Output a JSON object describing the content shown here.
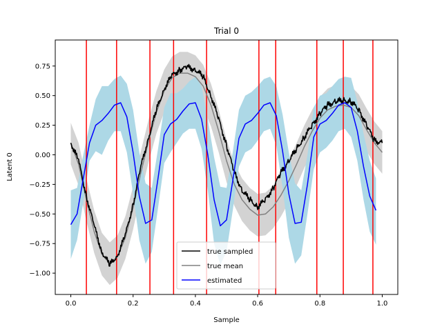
{
  "chart_data": {
    "type": "line",
    "title": "Trial 0",
    "xlabel": "Sample",
    "ylabel": "Latent 0",
    "xlim": [
      -0.05,
      1.05
    ],
    "ylim": [
      -1.18,
      0.97
    ],
    "xticks": [
      0.0,
      0.2,
      0.4,
      0.6,
      0.8,
      1.0
    ],
    "xtick_labels": [
      "0.0",
      "0.2",
      "0.4",
      "0.6",
      "0.8",
      "1.0"
    ],
    "yticks": [
      -1.0,
      -0.75,
      -0.5,
      -0.25,
      0.0,
      0.25,
      0.5,
      0.75
    ],
    "ytick_labels": [
      "−1.00",
      "−0.75",
      "−0.50",
      "−0.25",
      "0.00",
      "0.25",
      "0.50",
      "0.75"
    ],
    "grid": false,
    "legend_position": "bottom-center",
    "vertical_lines": {
      "color": "#ff0000",
      "x": [
        0.05,
        0.147,
        0.254,
        0.33,
        0.436,
        0.604,
        0.658,
        0.79,
        0.875,
        0.97
      ]
    },
    "series": [
      {
        "name": "true sampled",
        "color": "#000000",
        "x": [
          0.0,
          0.025,
          0.05,
          0.075,
          0.1,
          0.125,
          0.15,
          0.175,
          0.2,
          0.225,
          0.25,
          0.275,
          0.3,
          0.325,
          0.35,
          0.375,
          0.4,
          0.425,
          0.45,
          0.475,
          0.5,
          0.525,
          0.55,
          0.575,
          0.6,
          0.625,
          0.65,
          0.675,
          0.7,
          0.725,
          0.75,
          0.775,
          0.8,
          0.825,
          0.85,
          0.875,
          0.9,
          0.925,
          0.95,
          0.975,
          1.0
        ],
        "values": [
          0.1,
          -0.05,
          -0.35,
          -0.6,
          -0.82,
          -0.93,
          -0.85,
          -0.68,
          -0.42,
          -0.1,
          0.15,
          0.38,
          0.56,
          0.67,
          0.72,
          0.74,
          0.72,
          0.66,
          0.5,
          0.3,
          0.08,
          -0.15,
          -0.3,
          -0.38,
          -0.44,
          -0.38,
          -0.28,
          -0.15,
          -0.05,
          0.05,
          0.15,
          0.25,
          0.35,
          0.42,
          0.45,
          0.46,
          0.45,
          0.38,
          0.25,
          0.12,
          0.1
        ]
      },
      {
        "name": "true mean",
        "color": "#808080",
        "x": [
          0.0,
          0.025,
          0.05,
          0.075,
          0.1,
          0.125,
          0.15,
          0.175,
          0.2,
          0.225,
          0.25,
          0.275,
          0.3,
          0.325,
          0.35,
          0.375,
          0.4,
          0.425,
          0.45,
          0.475,
          0.5,
          0.525,
          0.55,
          0.575,
          0.6,
          0.625,
          0.65,
          0.675,
          0.7,
          0.725,
          0.75,
          0.775,
          0.8,
          0.825,
          0.85,
          0.875,
          0.9,
          0.925,
          0.95,
          0.975,
          1.0
        ],
        "values": [
          0.1,
          -0.08,
          -0.38,
          -0.65,
          -0.84,
          -0.92,
          -0.86,
          -0.7,
          -0.45,
          -0.15,
          0.12,
          0.36,
          0.54,
          0.65,
          0.69,
          0.69,
          0.66,
          0.58,
          0.42,
          0.2,
          -0.05,
          -0.25,
          -0.38,
          -0.46,
          -0.51,
          -0.5,
          -0.44,
          -0.34,
          -0.22,
          -0.08,
          0.07,
          0.2,
          0.31,
          0.38,
          0.41,
          0.42,
          0.4,
          0.33,
          0.21,
          0.1,
          0.02
        ]
      },
      {
        "name": "estimated",
        "color": "#0000ff",
        "x": [
          0.0,
          0.02,
          0.04,
          0.06,
          0.08,
          0.1,
          0.12,
          0.14,
          0.16,
          0.18,
          0.2,
          0.22,
          0.24,
          0.26,
          0.28,
          0.3,
          0.32,
          0.34,
          0.36,
          0.38,
          0.4,
          0.42,
          0.44,
          0.46,
          0.48,
          0.5,
          0.52,
          0.54,
          0.56,
          0.58,
          0.6,
          0.62,
          0.64,
          0.66,
          0.68,
          0.7,
          0.72,
          0.74,
          0.76,
          0.78,
          0.8,
          0.82,
          0.84,
          0.86,
          0.88,
          0.9,
          0.92,
          0.94,
          0.96,
          0.98
        ],
        "values": [
          -0.59,
          -0.5,
          -0.2,
          0.1,
          0.25,
          0.29,
          0.35,
          0.42,
          0.44,
          0.32,
          0.02,
          -0.35,
          -0.58,
          -0.55,
          -0.2,
          0.17,
          0.26,
          0.3,
          0.37,
          0.43,
          0.44,
          0.3,
          0.0,
          -0.38,
          -0.6,
          -0.55,
          -0.22,
          0.14,
          0.26,
          0.29,
          0.35,
          0.42,
          0.44,
          0.33,
          0.03,
          -0.33,
          -0.58,
          -0.57,
          -0.25,
          0.15,
          0.26,
          0.29,
          0.35,
          0.42,
          0.44,
          0.4,
          0.2,
          -0.1,
          -0.35,
          -0.47
        ]
      }
    ],
    "bands": [
      {
        "of": "true mean",
        "color": "#d3d3d3",
        "x": [
          0.0,
          0.025,
          0.05,
          0.075,
          0.1,
          0.125,
          0.15,
          0.175,
          0.2,
          0.225,
          0.25,
          0.275,
          0.3,
          0.325,
          0.35,
          0.375,
          0.4,
          0.425,
          0.45,
          0.475,
          0.5,
          0.525,
          0.55,
          0.575,
          0.6,
          0.625,
          0.65,
          0.675,
          0.7,
          0.725,
          0.75,
          0.775,
          0.8,
          0.825,
          0.85,
          0.875,
          0.9,
          0.925,
          0.95,
          0.975,
          1.0
        ],
        "lower": [
          -0.08,
          -0.26,
          -0.56,
          -0.83,
          -1.02,
          -1.1,
          -1.04,
          -0.88,
          -0.63,
          -0.33,
          -0.06,
          0.18,
          0.36,
          0.47,
          0.51,
          0.51,
          0.48,
          0.4,
          0.24,
          0.02,
          -0.23,
          -0.43,
          -0.56,
          -0.64,
          -0.69,
          -0.68,
          -0.62,
          -0.52,
          -0.4,
          -0.26,
          -0.11,
          0.02,
          0.13,
          0.2,
          0.23,
          0.24,
          0.22,
          0.15,
          0.03,
          -0.08,
          -0.16
        ],
        "upper": [
          0.27,
          0.1,
          -0.2,
          -0.47,
          -0.66,
          -0.74,
          -0.68,
          -0.52,
          -0.27,
          0.03,
          0.3,
          0.54,
          0.72,
          0.83,
          0.87,
          0.87,
          0.84,
          0.76,
          0.6,
          0.38,
          0.13,
          -0.07,
          -0.2,
          -0.28,
          -0.33,
          -0.32,
          -0.26,
          -0.16,
          -0.04,
          0.1,
          0.25,
          0.38,
          0.49,
          0.56,
          0.59,
          0.6,
          0.58,
          0.51,
          0.39,
          0.28,
          0.2
        ]
      },
      {
        "of": "estimated",
        "color": "#add8e6",
        "x": [
          0.0,
          0.02,
          0.04,
          0.06,
          0.08,
          0.1,
          0.12,
          0.14,
          0.16,
          0.18,
          0.2,
          0.22,
          0.24,
          0.26,
          0.28,
          0.3,
          0.32,
          0.34,
          0.36,
          0.38,
          0.4,
          0.42,
          0.44,
          0.46,
          0.48,
          0.5,
          0.52,
          0.54,
          0.56,
          0.58,
          0.6,
          0.62,
          0.64,
          0.66,
          0.68,
          0.7,
          0.72,
          0.74,
          0.76,
          0.78,
          0.8,
          0.82,
          0.84,
          0.86,
          0.88,
          0.9,
          0.92,
          0.94,
          0.96,
          0.98
        ],
        "lower": [
          -0.88,
          -0.72,
          -0.4,
          -0.05,
          0.03,
          0.0,
          0.12,
          0.2,
          0.2,
          0.02,
          -0.33,
          -0.72,
          -0.92,
          -0.82,
          -0.45,
          -0.07,
          0.02,
          0.1,
          0.18,
          0.22,
          0.22,
          0.05,
          -0.3,
          -0.75,
          -0.93,
          -0.82,
          -0.47,
          -0.1,
          0.02,
          0.05,
          0.12,
          0.2,
          0.22,
          0.08,
          -0.28,
          -0.7,
          -0.92,
          -0.85,
          -0.5,
          -0.12,
          0.02,
          0.06,
          0.12,
          0.2,
          0.22,
          0.15,
          -0.05,
          -0.38,
          -0.65,
          -0.76
        ],
        "upper": [
          -0.3,
          -0.28,
          0.0,
          0.25,
          0.47,
          0.58,
          0.58,
          0.64,
          0.67,
          0.6,
          0.38,
          0.02,
          -0.24,
          -0.28,
          0.05,
          0.4,
          0.52,
          0.52,
          0.56,
          0.62,
          0.66,
          0.58,
          0.3,
          -0.02,
          -0.27,
          -0.28,
          0.02,
          0.38,
          0.5,
          0.53,
          0.58,
          0.64,
          0.66,
          0.58,
          0.34,
          0.02,
          -0.24,
          -0.3,
          0.0,
          0.4,
          0.5,
          0.52,
          0.58,
          0.64,
          0.66,
          0.65,
          0.45,
          0.18,
          -0.05,
          -0.2
        ]
      }
    ]
  }
}
